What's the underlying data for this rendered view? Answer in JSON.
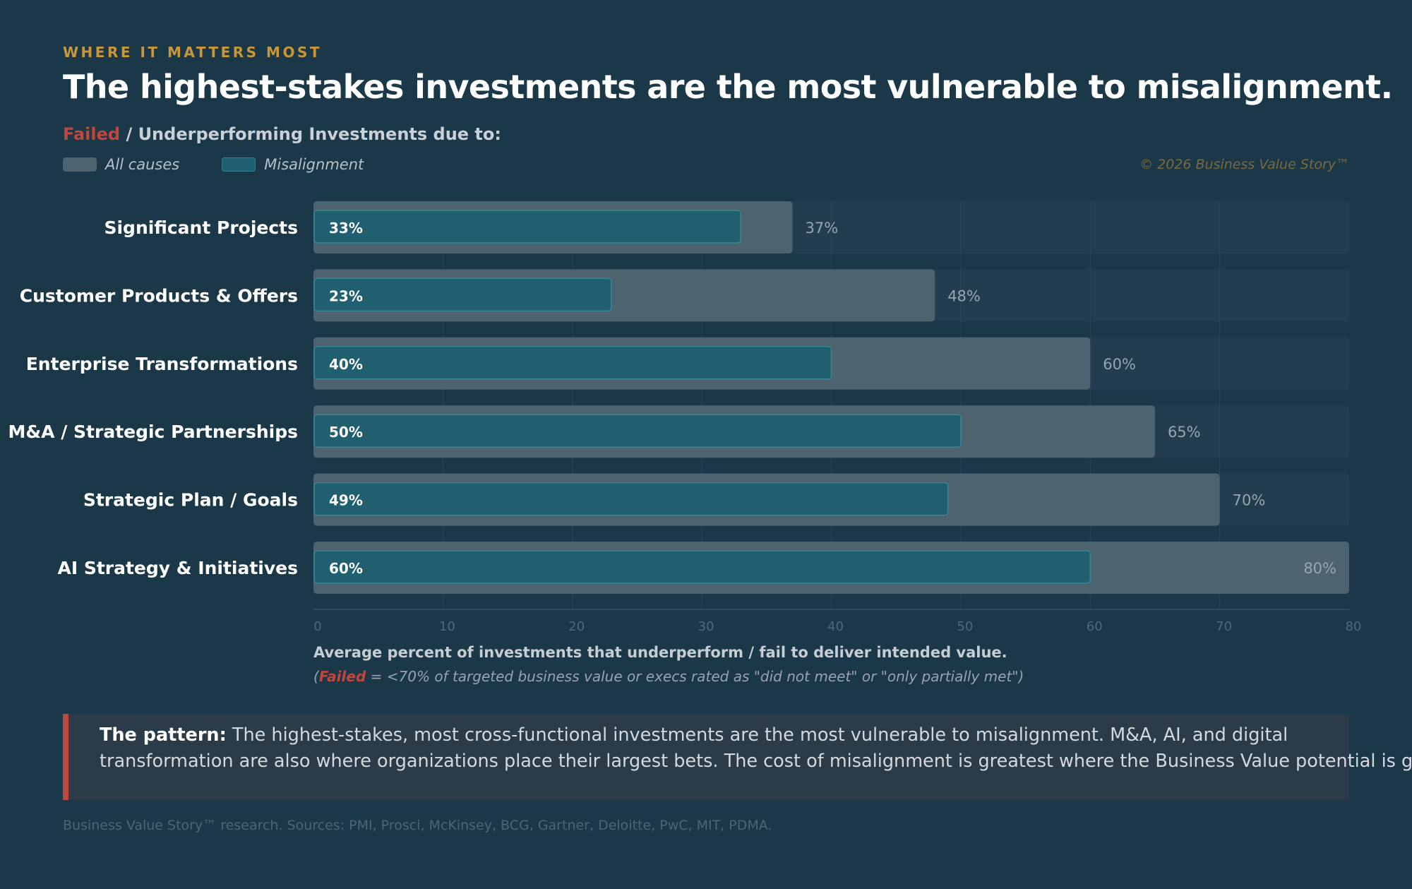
{
  "header": {
    "eyebrow": "WHERE IT MATTERS MOST",
    "title": "The highest-stakes investments are the most vulnerable to misalignment.",
    "subtitle_failed": "Failed",
    "subtitle_rest": " / Underperforming Investments due to:",
    "copyright": "© 2026 Business Value Story™"
  },
  "legend": {
    "all_causes": "All causes",
    "misalignment": "Misalignment"
  },
  "colors": {
    "background": "#1b3849",
    "all_causes_bar": "#4d636e",
    "misalignment_bar": "#1f5f6f",
    "accent_red": "#c0473b",
    "eyebrow_gold": "#c9973a"
  },
  "chart_data": {
    "type": "bar",
    "orientation": "horizontal",
    "categories": [
      "Significant Projects",
      "Customer Products & Offers",
      "Enterprise Transformations",
      "M&A / Strategic Partnerships",
      "Strategic Plan / Goals",
      "AI Strategy & Initiatives"
    ],
    "series": [
      {
        "name": "All causes",
        "values": [
          37,
          48,
          60,
          65,
          70,
          80
        ]
      },
      {
        "name": "Misalignment",
        "values": [
          33,
          23,
          40,
          50,
          49,
          60
        ]
      }
    ],
    "xlim": [
      0,
      80
    ],
    "xticks": [
      0,
      10,
      20,
      30,
      40,
      50,
      60,
      70,
      80
    ],
    "value_suffix": "%",
    "grid": true,
    "legend": "top-left"
  },
  "notes": {
    "line1": "Average percent of investments that underperform / fail to deliver intended value.",
    "line2_open": "(",
    "line2_failed": "Failed",
    "line2_rest": " = <70% of targeted business value or execs rated as \"did not meet\" or \"only partially met\")"
  },
  "callout": {
    "lead": "The pattern:",
    "line1": " The highest-stakes, most cross-functional investments are the most vulnerable to misalignment. M&A, AI, and digital",
    "line2": "transformation are also where organizations place their largest bets. The cost of misalignment is greatest where the Business Value potential is greatest."
  },
  "footer": {
    "sources": "Business Value Story™ research. Sources: PMI, Prosci, McKinsey, BCG, Gartner, Deloitte, PwC, MIT, PDMA."
  }
}
